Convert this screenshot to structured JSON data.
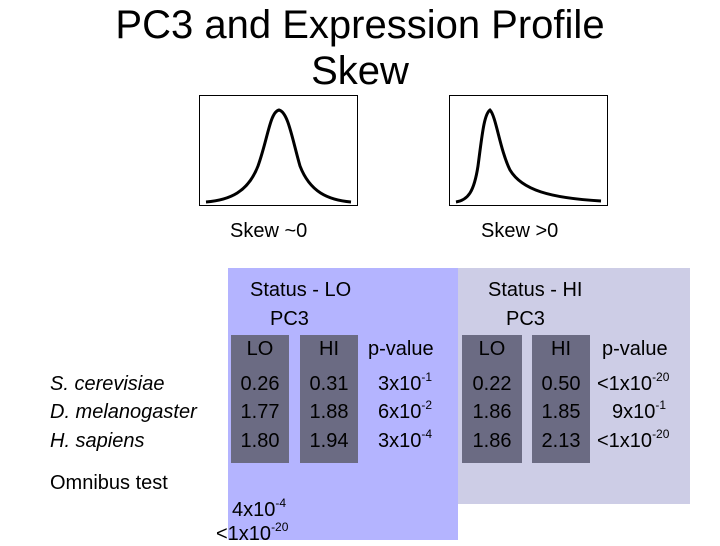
{
  "title_line1": "PC3 and Expression Profile",
  "title_line2": "Skew",
  "curves": {
    "left_caption": "Skew ~0",
    "right_caption": "Skew >0"
  },
  "lo_panel": {
    "status": "Status - LO",
    "pc3": "PC3",
    "col_lo": "LO",
    "col_hi": "HI",
    "col_p": "p-value"
  },
  "hi_panel": {
    "status": "Status - HI",
    "pc3": "PC3",
    "col_lo": "LO",
    "col_hi": "HI",
    "col_p": "p-value"
  },
  "rows": [
    {
      "species": "S. cerevisiae",
      "lo_LO": "0.26",
      "lo_HI": "0.31",
      "lo_p_base": "3x10",
      "lo_p_exp": "-1",
      "hi_LO": "0.22",
      "hi_HI": "0.50",
      "hi_p_base": "<1x10",
      "hi_p_exp": "-20"
    },
    {
      "species": "D. melanogaster",
      "lo_LO": "1.77",
      "lo_HI": "1.88",
      "lo_p_base": "6x10",
      "lo_p_exp": "-2",
      "hi_LO": "1.86",
      "hi_HI": "1.85",
      "hi_p_base": "9x10",
      "hi_p_exp": "-1"
    },
    {
      "species": "H. sapiens",
      "lo_LO": "1.80",
      "lo_HI": "1.94",
      "lo_p_base": "3x10",
      "lo_p_exp": "-4",
      "hi_LO": "1.86",
      "hi_HI": "2.13",
      "hi_p_base": "<1x10",
      "hi_p_exp": "-20"
    }
  ],
  "omnibus": {
    "label": "Omnibus test",
    "v1_base": "4x10",
    "v1_exp": "-4",
    "v2_base": "<1x10",
    "v2_exp": "-20"
  }
}
